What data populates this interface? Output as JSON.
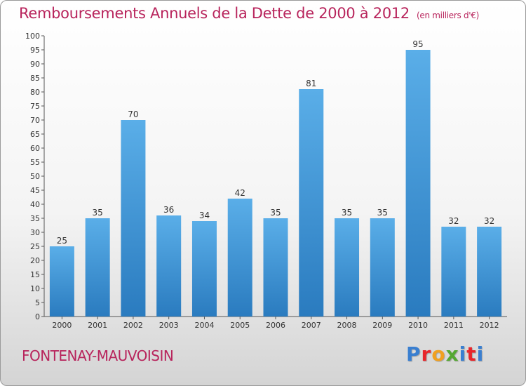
{
  "header": {
    "title": "Remboursements Annuels de la Dette de 2000 à 2012",
    "unit": "(en milliers d'€)"
  },
  "footer": {
    "commune": "FONTENAY-MAUVOISIN",
    "brand": "Proxiti",
    "brand_colors": [
      "#3a7fd0",
      "#e8262b",
      "#f0a020",
      "#55a832",
      "#3a7fd0",
      "#e8262b",
      "#3a7fd0"
    ]
  },
  "chart_data": {
    "type": "bar",
    "title": "Remboursements Annuels de la Dette de 2000 à 2012",
    "categories": [
      "2000",
      "2001",
      "2002",
      "2003",
      "2004",
      "2005",
      "2006",
      "2007",
      "2008",
      "2009",
      "2010",
      "2011",
      "2012"
    ],
    "values": [
      25,
      35,
      70,
      36,
      34,
      42,
      35,
      81,
      35,
      35,
      95,
      32,
      32
    ],
    "ylim": [
      0,
      100
    ],
    "yticks": [
      0,
      5,
      10,
      15,
      20,
      25,
      30,
      35,
      40,
      45,
      50,
      55,
      60,
      65,
      70,
      75,
      80,
      85,
      90,
      95,
      100
    ],
    "grid": false,
    "bar_color_top": "#5aaee8",
    "bar_color_bottom": "#2a7bbf"
  }
}
